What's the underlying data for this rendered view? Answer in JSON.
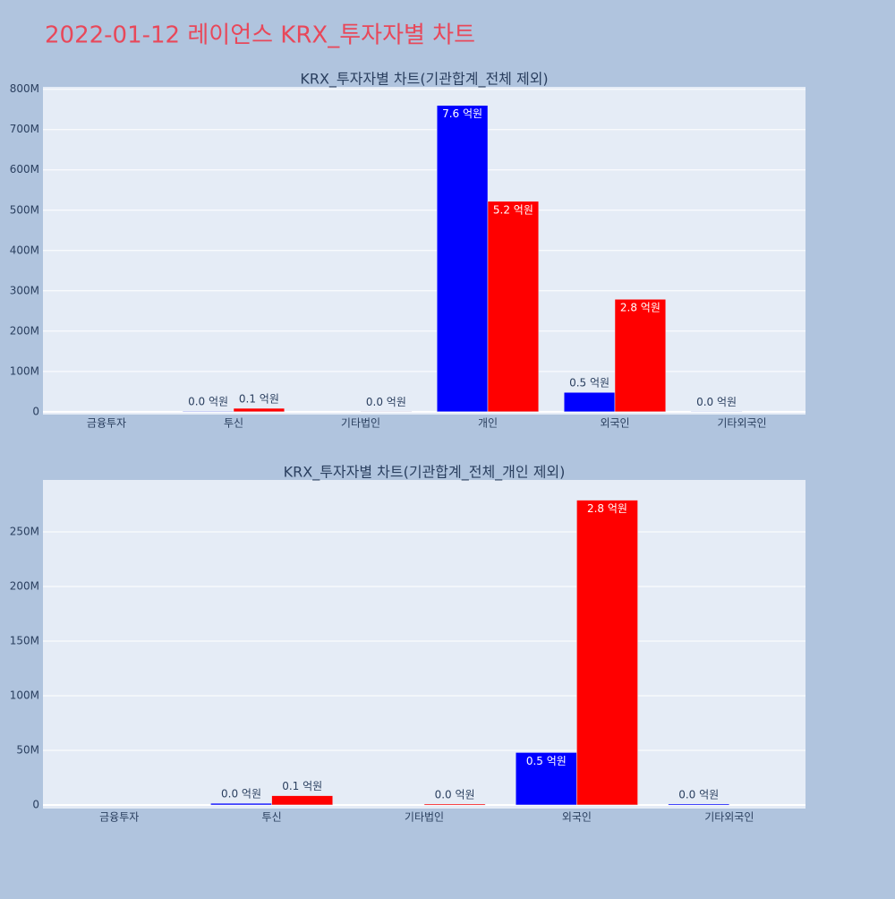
{
  "title": "2022-01-12 레이언스 KRX_투자자별 차트",
  "chart_data": [
    {
      "type": "bar",
      "title": "KRX_투자자별 차트(기관합계_전체 제외)",
      "categories": [
        "금융투자",
        "투신",
        "기타법인",
        "개인",
        "외국인",
        "기타외국인"
      ],
      "series": [
        {
          "color": "#0000ff",
          "values": [
            null,
            1500000,
            null,
            760000000,
            48000000,
            1000000
          ],
          "value_labels": [
            null,
            "0.0 억원",
            null,
            "7.6 억원",
            "0.5 억원",
            "0.0 억원"
          ]
        },
        {
          "color": "#ff0000",
          "values": [
            null,
            8500000,
            1000000,
            522000000,
            279000000,
            null
          ],
          "value_labels": [
            null,
            "0.1 억원",
            "0.0 억원",
            "5.2 억원",
            "2.8 억원",
            null
          ]
        }
      ],
      "ylim": [
        -7000000,
        806000000
      ],
      "yticks": [
        0,
        {
          "value": 100000000,
          "label": "100M"
        },
        {
          "value": 200000000,
          "label": "200M"
        },
        {
          "value": 300000000,
          "label": "300M"
        },
        {
          "value": 400000000,
          "label": "400M"
        },
        {
          "value": 500000000,
          "label": "500M"
        },
        {
          "value": 600000000,
          "label": "600M"
        },
        {
          "value": 700000000,
          "label": "700M"
        },
        {
          "value": 800000000,
          "label": "800M"
        }
      ],
      "grid": true
    },
    {
      "type": "bar",
      "title": "KRX_투자자별 차트(기관합계_전체_개인 제외)",
      "categories": [
        "금융투자",
        "투신",
        "기타법인",
        "외국인",
        "기타외국인"
      ],
      "series": [
        {
          "color": "#0000ff",
          "values": [
            null,
            1500000,
            null,
            48000000,
            1000000
          ],
          "value_labels": [
            null,
            "0.0 억원",
            null,
            "0.5 억원",
            "0.0 억원"
          ]
        },
        {
          "color": "#ff0000",
          "values": [
            null,
            8500000,
            1000000,
            279000000,
            null
          ],
          "value_labels": [
            null,
            "0.1 억원",
            "0.0 억원",
            "2.8 억원",
            null
          ]
        }
      ],
      "ylim": [
        -3300000,
        297500000
      ],
      "yticks": [
        0,
        {
          "value": 50000000,
          "label": "50M"
        },
        {
          "value": 100000000,
          "label": "100M"
        },
        {
          "value": 150000000,
          "label": "150M"
        },
        {
          "value": 200000000,
          "label": "200M"
        },
        {
          "value": 250000000,
          "label": "250M"
        }
      ],
      "grid": true
    }
  ]
}
